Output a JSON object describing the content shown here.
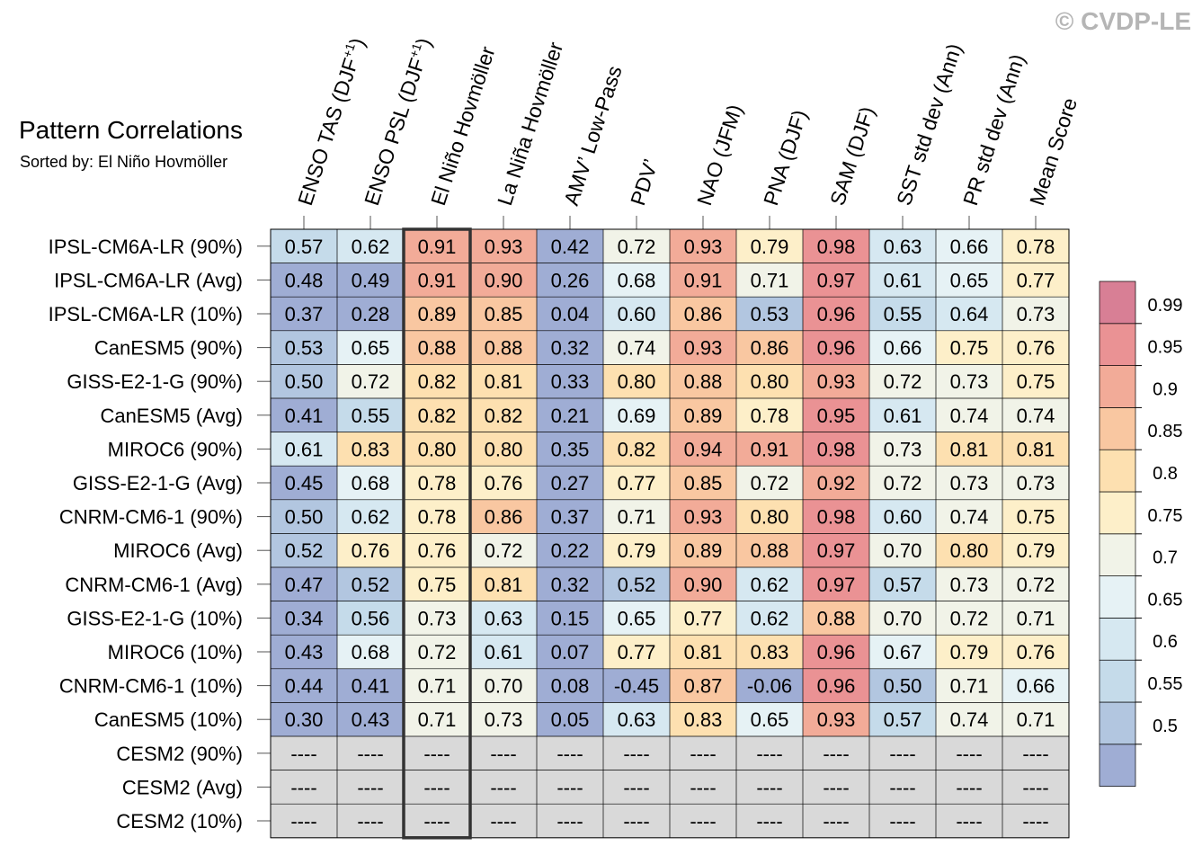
{
  "watermark": "© CVDP-LE",
  "title": "Pattern Correlations",
  "subtitle": "Sorted by: El Niño Hovmöller",
  "chart_data": {
    "type": "heatmap",
    "columns": [
      {
        "pre": "ENSO TAS (DJF",
        "sup": "+1",
        "post": ")"
      },
      {
        "pre": "ENSO PSL (DJF",
        "sup": "+1",
        "post": ")"
      },
      {
        "pre": "El Niño Hovmöller"
      },
      {
        "pre": "La Niña Hovmöller"
      },
      {
        "pre": "AMV’ Low-Pass"
      },
      {
        "pre": "PDV’"
      },
      {
        "pre": "NAO (JFM)"
      },
      {
        "pre": "PNA (DJF)"
      },
      {
        "pre": "SAM (DJF)"
      },
      {
        "pre": "SST std dev (Ann)"
      },
      {
        "pre": "PR std dev (Ann)"
      },
      {
        "pre": "Mean Score"
      }
    ],
    "highlight_column": "El Niño Hovmöller",
    "rows": [
      "IPSL-CM6A-LR (90%)",
      "IPSL-CM6A-LR (Avg)",
      "IPSL-CM6A-LR (10%)",
      "CanESM5 (90%)",
      "GISS-E2-1-G (90%)",
      "CanESM5 (Avg)",
      "MIROC6 (90%)",
      "GISS-E2-1-G (Avg)",
      "CNRM-CM6-1 (90%)",
      "MIROC6 (Avg)",
      "CNRM-CM6-1 (Avg)",
      "GISS-E2-1-G (10%)",
      "MIROC6 (10%)",
      "CNRM-CM6-1 (10%)",
      "CanESM5 (10%)",
      "CESM2 (90%)",
      "CESM2 (Avg)",
      "CESM2 (10%)"
    ],
    "values": [
      [
        "0.57",
        "0.62",
        "0.91",
        "0.93",
        "0.42",
        "0.72",
        "0.93",
        "0.79",
        "0.98",
        "0.63",
        "0.66",
        "0.78"
      ],
      [
        "0.48",
        "0.49",
        "0.91",
        "0.90",
        "0.26",
        "0.68",
        "0.91",
        "0.71",
        "0.97",
        "0.61",
        "0.65",
        "0.77"
      ],
      [
        "0.37",
        "0.28",
        "0.89",
        "0.85",
        "0.04",
        "0.60",
        "0.86",
        "0.53",
        "0.96",
        "0.55",
        "0.64",
        "0.73"
      ],
      [
        "0.53",
        "0.65",
        "0.88",
        "0.88",
        "0.32",
        "0.74",
        "0.93",
        "0.86",
        "0.96",
        "0.66",
        "0.75",
        "0.76"
      ],
      [
        "0.50",
        "0.72",
        "0.82",
        "0.81",
        "0.33",
        "0.80",
        "0.88",
        "0.80",
        "0.93",
        "0.72",
        "0.73",
        "0.75"
      ],
      [
        "0.41",
        "0.55",
        "0.82",
        "0.82",
        "0.21",
        "0.69",
        "0.89",
        "0.78",
        "0.95",
        "0.61",
        "0.74",
        "0.74"
      ],
      [
        "0.61",
        "0.83",
        "0.80",
        "0.80",
        "0.35",
        "0.82",
        "0.94",
        "0.91",
        "0.98",
        "0.73",
        "0.81",
        "0.81"
      ],
      [
        "0.45",
        "0.68",
        "0.78",
        "0.76",
        "0.27",
        "0.77",
        "0.85",
        "0.72",
        "0.92",
        "0.72",
        "0.73",
        "0.73"
      ],
      [
        "0.50",
        "0.62",
        "0.78",
        "0.86",
        "0.37",
        "0.71",
        "0.93",
        "0.80",
        "0.98",
        "0.60",
        "0.74",
        "0.75"
      ],
      [
        "0.52",
        "0.76",
        "0.76",
        "0.72",
        "0.22",
        "0.79",
        "0.89",
        "0.88",
        "0.97",
        "0.70",
        "0.80",
        "0.79"
      ],
      [
        "0.47",
        "0.52",
        "0.75",
        "0.81",
        "0.32",
        "0.52",
        "0.90",
        "0.62",
        "0.97",
        "0.57",
        "0.73",
        "0.72"
      ],
      [
        "0.34",
        "0.56",
        "0.73",
        "0.63",
        "0.15",
        "0.65",
        "0.77",
        "0.62",
        "0.88",
        "0.70",
        "0.72",
        "0.71"
      ],
      [
        "0.43",
        "0.68",
        "0.72",
        "0.61",
        "0.07",
        "0.77",
        "0.81",
        "0.83",
        "0.96",
        "0.67",
        "0.79",
        "0.76"
      ],
      [
        "0.44",
        "0.41",
        "0.71",
        "0.70",
        "0.08",
        "-0.45",
        "0.87",
        "-0.06",
        "0.96",
        "0.50",
        "0.71",
        "0.66"
      ],
      [
        "0.30",
        "0.43",
        "0.71",
        "0.73",
        "0.05",
        "0.63",
        "0.83",
        "0.65",
        "0.93",
        "0.57",
        "0.74",
        "0.71"
      ],
      [
        "----",
        "----",
        "----",
        "----",
        "----",
        "----",
        "----",
        "----",
        "----",
        "----",
        "----",
        "----"
      ],
      [
        "----",
        "----",
        "----",
        "----",
        "----",
        "----",
        "----",
        "----",
        "----",
        "----",
        "----",
        "----"
      ],
      [
        "----",
        "----",
        "----",
        "----",
        "----",
        "----",
        "----",
        "----",
        "----",
        "----",
        "----",
        "----"
      ]
    ],
    "missing_color": "#d9d9d9",
    "colorbar": {
      "labels": [
        "0.99",
        "0.95",
        "0.9",
        "0.85",
        "0.8",
        "0.75",
        "0.7",
        "0.65",
        "0.6",
        "0.55",
        "0.5"
      ],
      "boundaries": [
        0.5,
        0.55,
        0.6,
        0.65,
        0.7,
        0.75,
        0.8,
        0.85,
        0.9,
        0.95,
        0.99
      ],
      "colors": [
        "#9fadd4",
        "#b2c6e0",
        "#c5dbea",
        "#d6e8f1",
        "#e6f2f5",
        "#f1f3e8",
        "#fdefc9",
        "#fde0b0",
        "#f9c7a1",
        "#f2ab98",
        "#ea9294",
        "#d87f95"
      ]
    }
  }
}
